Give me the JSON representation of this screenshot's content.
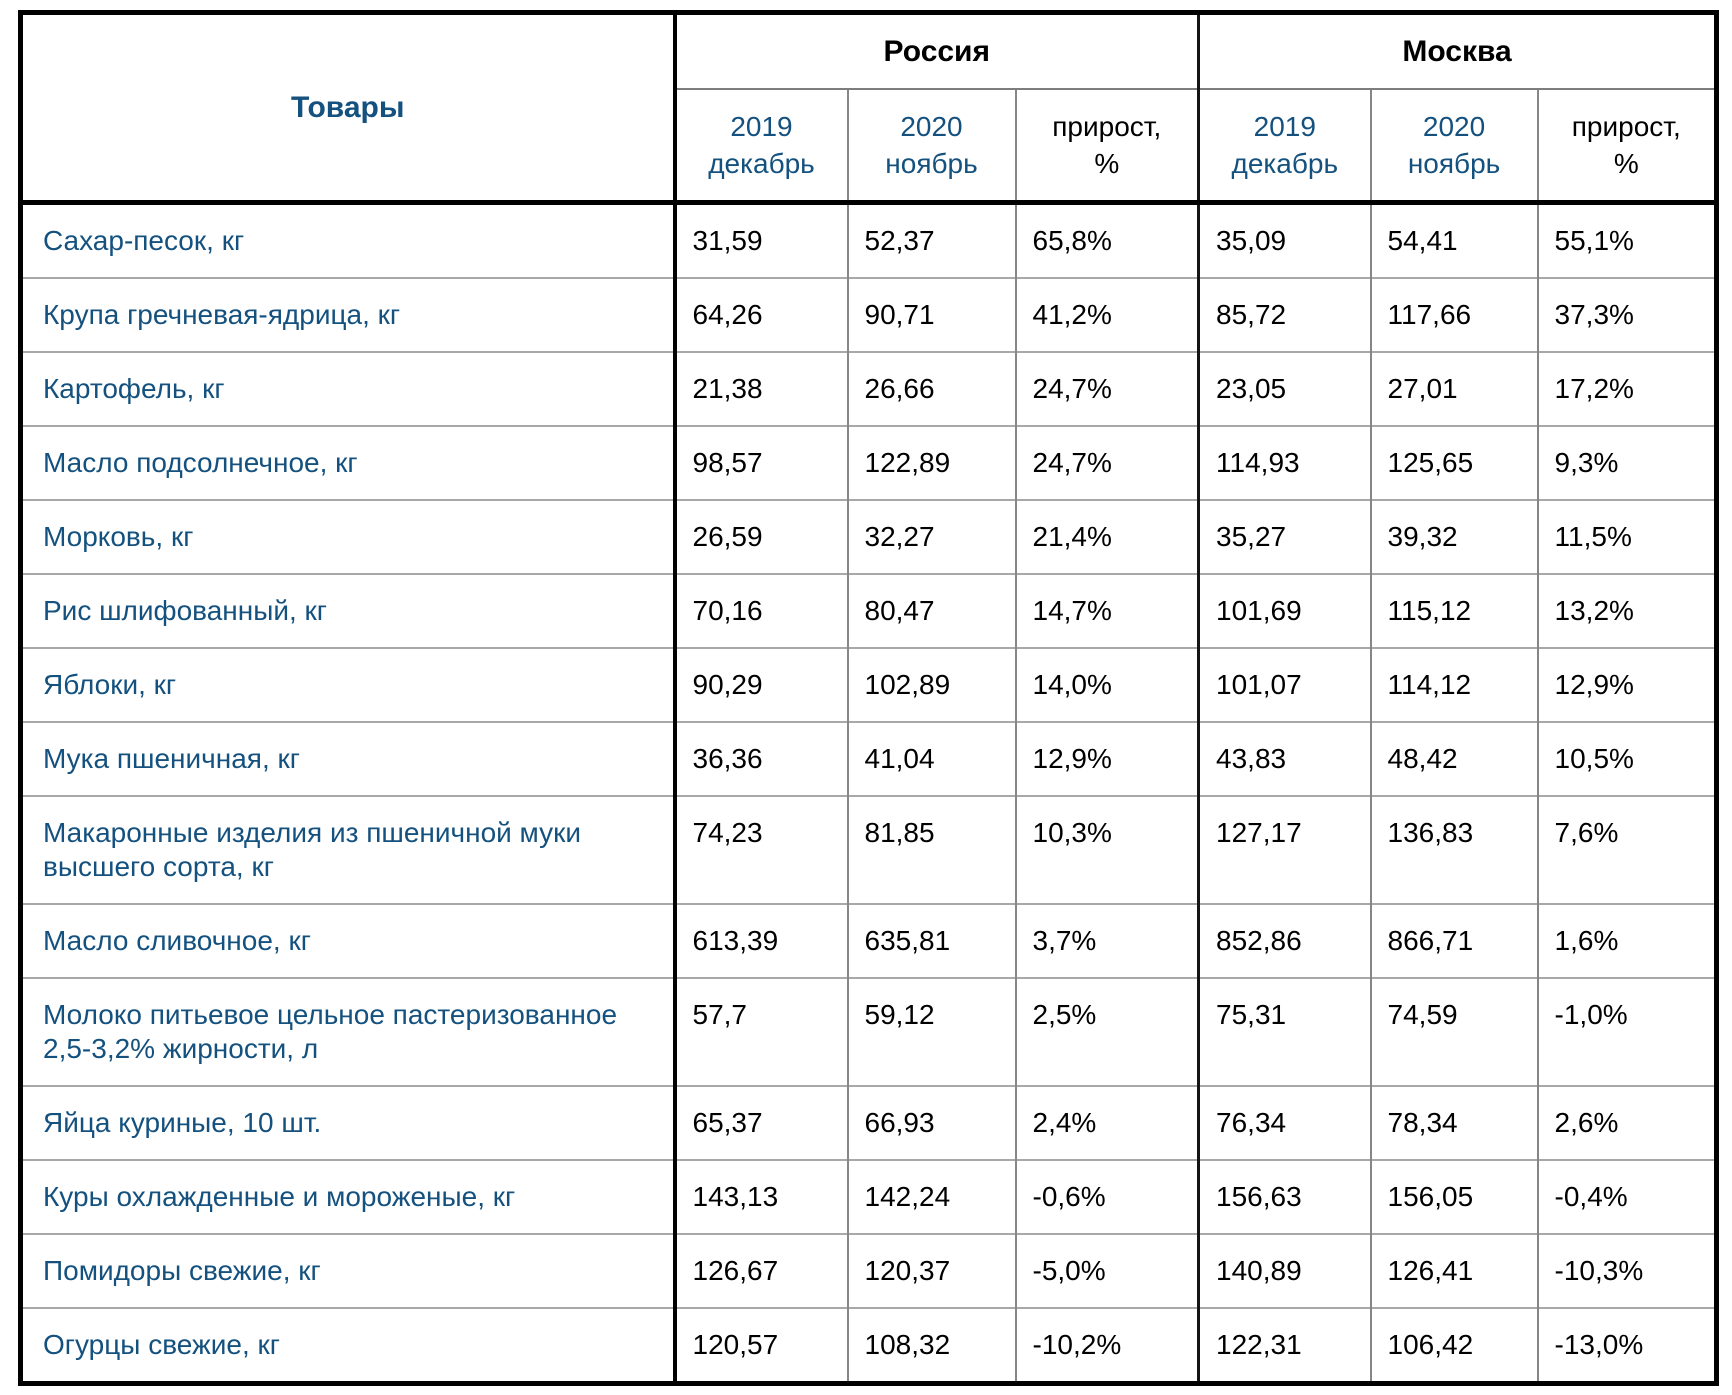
{
  "colors": {
    "label_blue": "#14517E",
    "text_black": "#000000",
    "thin_line_gray": "#A8A8A8",
    "border_black": "#000000"
  },
  "table": {
    "products_header": "Товары",
    "region_groups": [
      {
        "label": "Россия"
      },
      {
        "label": "Москва"
      }
    ],
    "period_headers": [
      "2019\nдекабрь",
      "2020\nноябрь",
      "прирост,\n%",
      "2019\nдекабрь",
      "2020\nноябрь",
      "прирост,\n%"
    ],
    "rows": [
      {
        "name": "Сахар-песок, кг",
        "values": [
          "31,59",
          "52,37",
          "65,8%",
          "35,09",
          "54,41",
          "55,1%"
        ]
      },
      {
        "name": "Крупа гречневая-ядрица, кг",
        "values": [
          "64,26",
          "90,71",
          "41,2%",
          "85,72",
          "117,66",
          "37,3%"
        ]
      },
      {
        "name": "Картофель, кг",
        "values": [
          "21,38",
          "26,66",
          "24,7%",
          "23,05",
          "27,01",
          "17,2%"
        ]
      },
      {
        "name": "Масло подсолнечное, кг",
        "values": [
          "98,57",
          "122,89",
          "24,7%",
          "114,93",
          "125,65",
          "9,3%"
        ]
      },
      {
        "name": "Морковь, кг",
        "values": [
          "26,59",
          "32,27",
          "21,4%",
          "35,27",
          "39,32",
          "11,5%"
        ]
      },
      {
        "name": "Рис шлифованный, кг",
        "values": [
          "70,16",
          "80,47",
          "14,7%",
          "101,69",
          "115,12",
          "13,2%"
        ]
      },
      {
        "name": "Яблоки, кг",
        "values": [
          "90,29",
          "102,89",
          "14,0%",
          "101,07",
          "114,12",
          "12,9%"
        ]
      },
      {
        "name": "Мука пшеничная, кг",
        "values": [
          "36,36",
          "41,04",
          "12,9%",
          "43,83",
          "48,42",
          "10,5%"
        ]
      },
      {
        "name": "Макаронные изделия из пшеничной муки высшего сорта, кг",
        "values": [
          "74,23",
          "81,85",
          "10,3%",
          "127,17",
          "136,83",
          "7,6%"
        ]
      },
      {
        "name": "Масло сливочное, кг",
        "values": [
          "613,39",
          "635,81",
          "3,7%",
          "852,86",
          "866,71",
          "1,6%"
        ]
      },
      {
        "name": "Молоко питьевое цельное пастеризованное 2,5-3,2% жирности, л",
        "values": [
          "57,7",
          "59,12",
          "2,5%",
          "75,31",
          "74,59",
          "-1,0%"
        ]
      },
      {
        "name": "Яйца куриные, 10 шт.",
        "values": [
          "65,37",
          "66,93",
          "2,4%",
          "76,34",
          "78,34",
          "2,6%"
        ]
      },
      {
        "name": "Куры охлажденные и мороженые, кг",
        "values": [
          "143,13",
          "142,24",
          "-0,6%",
          "156,63",
          "156,05",
          "-0,4%"
        ]
      },
      {
        "name": "Помидоры свежие, кг",
        "values": [
          "126,67",
          "120,37",
          "-5,0%",
          "140,89",
          "126,41",
          "-10,3%"
        ]
      },
      {
        "name": "Огурцы свежие, кг",
        "values": [
          "120,57",
          "108,32",
          "-10,2%",
          "122,31",
          "106,42",
          "-13,0%"
        ]
      }
    ]
  }
}
